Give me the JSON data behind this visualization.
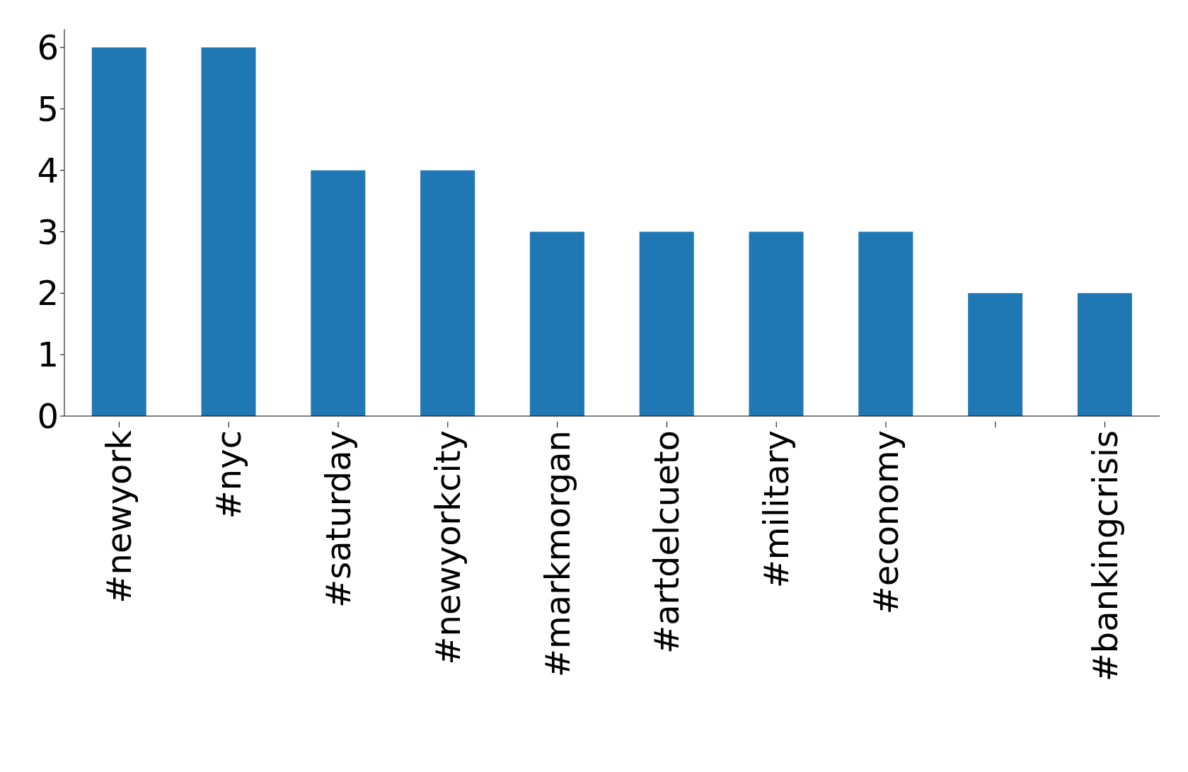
{
  "chart_data": {
    "type": "bar",
    "categories": [
      "#newyork",
      "#nyc",
      "#saturday",
      "#newyorkcity",
      "#markmorgan",
      "#artdelcueto",
      "#military",
      "#economy",
      null,
      "#bankingcrisis"
    ],
    "values": [
      6,
      6,
      4,
      4,
      3,
      3,
      3,
      3,
      2,
      2
    ],
    "color": "#1f77b4",
    "ylim": [
      0,
      6.3
    ],
    "yticks": [
      0,
      1,
      2,
      3,
      4,
      5,
      6
    ],
    "grid": false
  }
}
